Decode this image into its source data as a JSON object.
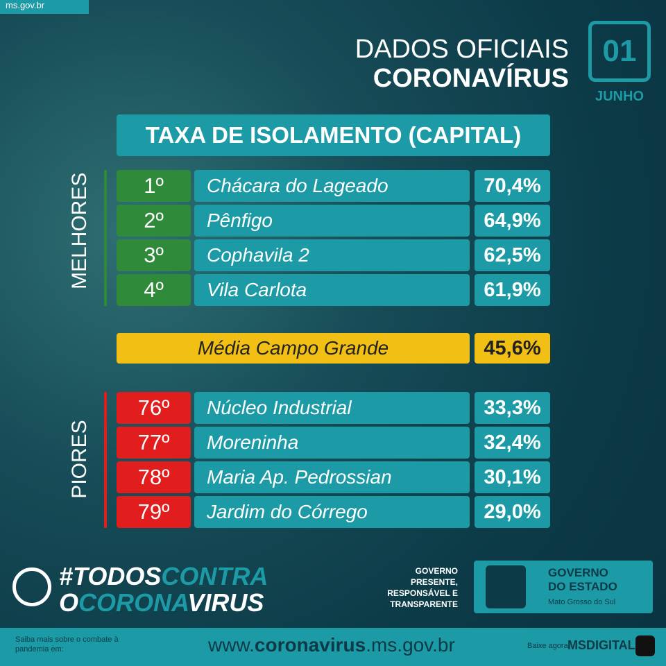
{
  "header": {
    "site": "ms.gov.br",
    "line1": "DADOS OFICIAIS",
    "line2": "CORONAVÍRUS",
    "day": "01",
    "month": "JUNHO"
  },
  "table": {
    "title": "TAXA DE ISOLAMENTO (CAPITAL)",
    "best": {
      "label": "MELHORES",
      "rows": [
        [
          "1º",
          "Chácara do Lageado",
          "70,4%"
        ],
        [
          "2º",
          "Pênfigo",
          "64,9%"
        ],
        [
          "3º",
          "Cophavila 2",
          "62,5%"
        ],
        [
          "4º",
          "Vila Carlota",
          "61,9%"
        ]
      ]
    },
    "average": {
      "name": "Média Campo Grande",
      "value": "45,6%"
    },
    "worst": {
      "label": "PIORES",
      "rows": [
        [
          "76º",
          "Núcleo Industrial",
          "33,3%"
        ],
        [
          "77º",
          "Moreninha",
          "32,4%"
        ],
        [
          "78º",
          "Maria Ap. Pedrossian",
          "30,1%"
        ],
        [
          "79º",
          "Jardim do Córrego",
          "29,0%"
        ]
      ]
    }
  },
  "footer": {
    "campaign": [
      "#TODOS",
      "CONTRA",
      "O",
      "CORONA",
      "VIRUS"
    ],
    "slogan": "GOVERNO\nPRESENTE,\nRESPONSÁVEL E\nTRANSPARENTE",
    "government": "GOVERNO\nDO ESTADO",
    "state": "Mato Grosso do Sul",
    "note": "Saiba mais sobre o combate à pandemia em:",
    "url": [
      "www.",
      "coronavirus",
      ".ms.gov.br"
    ],
    "app_note": "Baixe agora",
    "app": "MSDIGITAL"
  }
}
